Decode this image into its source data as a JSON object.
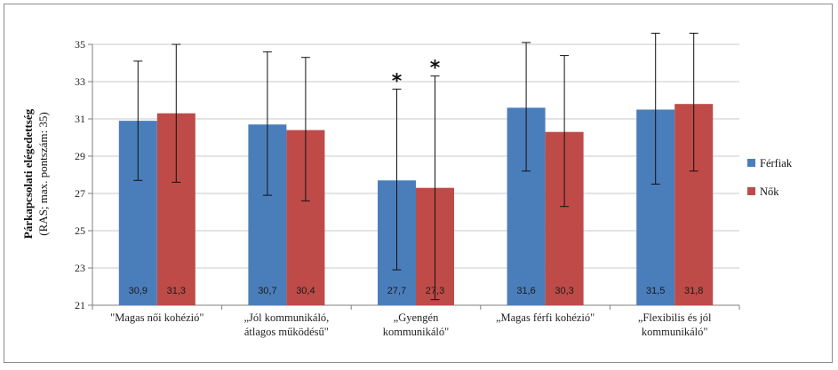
{
  "chart_data": {
    "type": "bar",
    "ylabel_line1": "Párkapcsolati elégedettség",
    "ylabel_line2": "(RAS; max. pontszám: 35)",
    "ylim": [
      21,
      35
    ],
    "yticks": [
      21,
      23,
      25,
      27,
      29,
      31,
      33,
      35
    ],
    "grid": true,
    "legend_position": "right",
    "categories": [
      [
        "\"Magas női kohézió\""
      ],
      [
        "„Jól kommunikáló,",
        "átlagos működésű\""
      ],
      [
        "„Gyengén",
        "kommunikáló\""
      ],
      [
        "„Magas férfi kohézió\""
      ],
      [
        "„Flexibilis és jól",
        "kommunikáló\""
      ]
    ],
    "series": [
      {
        "name": "Férfiak",
        "color": "#4a7ebb",
        "values": [
          30.9,
          30.7,
          27.7,
          31.6,
          31.5
        ],
        "labels": [
          "30,9",
          "30,7",
          "27,7",
          "31,6",
          "31,5"
        ],
        "err_high": [
          34.1,
          34.6,
          32.6,
          35.1,
          35.6
        ],
        "err_low": [
          27.7,
          26.9,
          22.9,
          28.2,
          27.5
        ]
      },
      {
        "name": "Nők",
        "color": "#be4b48",
        "values": [
          31.3,
          30.4,
          27.3,
          30.3,
          31.8
        ],
        "labels": [
          "31,3",
          "30,4",
          "27,3",
          "30,3",
          "31,8"
        ],
        "err_high": [
          35.0,
          34.3,
          33.3,
          34.4,
          35.6
        ],
        "err_low": [
          27.6,
          26.6,
          21.3,
          26.3,
          28.2
        ]
      }
    ],
    "annotations": [
      {
        "text": "*",
        "category_index": 2,
        "series_index": 0
      },
      {
        "text": "*",
        "category_index": 2,
        "series_index": 1
      }
    ]
  }
}
